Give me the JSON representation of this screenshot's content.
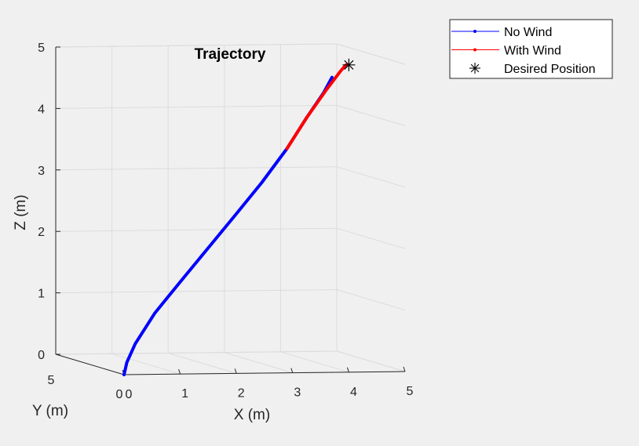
{
  "chart_data": {
    "type": "line",
    "projection": "3d",
    "title": "Trajectory",
    "xlabel": "X (m)",
    "ylabel": "Y (m)",
    "zlabel": "Z (m)",
    "xlim": [
      0,
      5
    ],
    "ylim": [
      0,
      5
    ],
    "zlim": [
      0,
      5
    ],
    "x_ticks": [
      "0",
      "1",
      "2",
      "3",
      "4",
      "5"
    ],
    "y_ticks": [
      "0",
      "5"
    ],
    "z_ticks": [
      "0",
      "1",
      "2",
      "3",
      "4",
      "5"
    ],
    "grid": true,
    "legend_position": "outside-top-right",
    "series": [
      {
        "name": "No Wind",
        "color": "#0000ff",
        "points": [
          {
            "x": 0.0,
            "y": 0.0,
            "z": 0.0
          },
          {
            "x": 0.05,
            "y": 0.0,
            "z": 0.2
          },
          {
            "x": 0.2,
            "y": 0.0,
            "z": 0.5
          },
          {
            "x": 0.55,
            "y": 0.0,
            "z": 1.0
          },
          {
            "x": 1.0,
            "y": 0.0,
            "z": 1.5
          },
          {
            "x": 1.5,
            "y": 0.0,
            "z": 2.05
          },
          {
            "x": 2.0,
            "y": 0.0,
            "z": 2.6
          },
          {
            "x": 2.45,
            "y": 0.0,
            "z": 3.1
          },
          {
            "x": 2.9,
            "y": 0.0,
            "z": 3.65
          },
          {
            "x": 3.25,
            "y": 0.0,
            "z": 4.15
          },
          {
            "x": 3.55,
            "y": 0.0,
            "z": 4.55
          },
          {
            "x": 3.7,
            "y": 0.0,
            "z": 4.8
          }
        ]
      },
      {
        "name": "With Wind",
        "color": "#ff0000",
        "points": [
          {
            "x": 2.9,
            "y": 0.0,
            "z": 3.65
          },
          {
            "x": 3.25,
            "y": 0.0,
            "z": 4.15
          },
          {
            "x": 3.6,
            "y": 0.0,
            "z": 4.6
          },
          {
            "x": 3.85,
            "y": 0.0,
            "z": 4.9
          },
          {
            "x": 3.95,
            "y": 0.0,
            "z": 5.0
          }
        ]
      },
      {
        "name": "Desired Position",
        "color": "#000000",
        "marker": "asterisk",
        "points": [
          {
            "x": 4.0,
            "y": 0.0,
            "z": 5.0
          }
        ]
      }
    ]
  }
}
